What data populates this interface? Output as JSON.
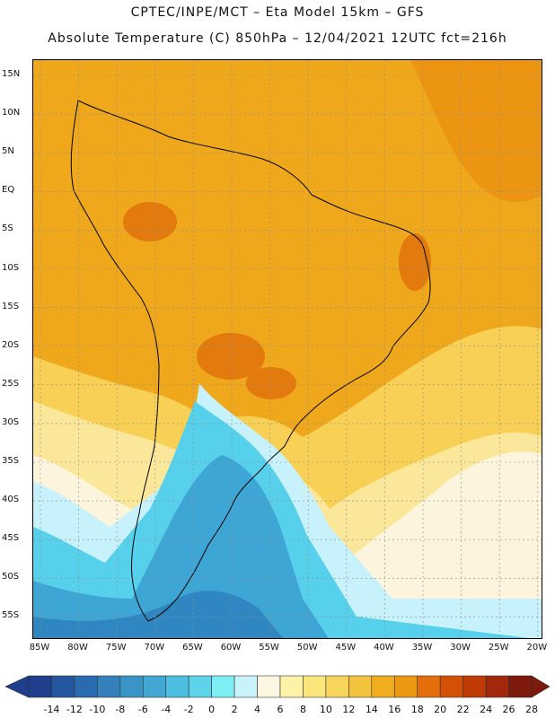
{
  "title": {
    "line1": "CPTEC/INPE/MCT –  Eta Model 15km – GFS",
    "line2": "Absolute Temperature (C) 850hPa – 12/04/2021 12UTC fct=216h"
  },
  "axes": {
    "lat_labels": [
      "15N",
      "10N",
      "5N",
      "EQ",
      "5S",
      "10S",
      "15S",
      "20S",
      "25S",
      "30S",
      "35S",
      "40S",
      "45S",
      "50S",
      "55S"
    ],
    "lon_labels": [
      "85W",
      "80W",
      "75W",
      "70W",
      "65W",
      "60W",
      "55W",
      "50W",
      "45W",
      "40W",
      "35W",
      "30W",
      "25W",
      "20W"
    ]
  },
  "colorbar": {
    "labels": [
      "-14",
      "-12",
      "-10",
      "-8",
      "-6",
      "-4",
      "-2",
      "0",
      "2",
      "4",
      "6",
      "8",
      "10",
      "12",
      "14",
      "16",
      "18",
      "20",
      "22",
      "24",
      "26",
      "28"
    ],
    "colors": [
      "#1f3f8c",
      "#2456a0",
      "#2a6aae",
      "#3380bb",
      "#3a94c6",
      "#42a8d3",
      "#4cbee0",
      "#5ed4ea",
      "#7eeef5",
      "#c8f3fb",
      "#fdf6e0",
      "#fdf3a8",
      "#fbe67c",
      "#f7d45c",
      "#f3c33e",
      "#f0ae1e",
      "#eb9812",
      "#e46f0a",
      "#d45006",
      "#bf3a05",
      "#a1280a",
      "#7d1a0c"
    ]
  },
  "map_colors": {
    "background": "#efa81c",
    "warm_north": "#ec9512",
    "hot_spots": "#e27a0e",
    "subtropical": "#f7d055",
    "mid_yellow": "#fbe79a",
    "cream": "#fdf4dd",
    "pale_cyan": "#c7f1fb",
    "cyan": "#57d0ec",
    "blue": "#3ea6d4",
    "deep_blue": "#2f86c0",
    "coast": "#000000",
    "grid": "#8c8c8c"
  }
}
